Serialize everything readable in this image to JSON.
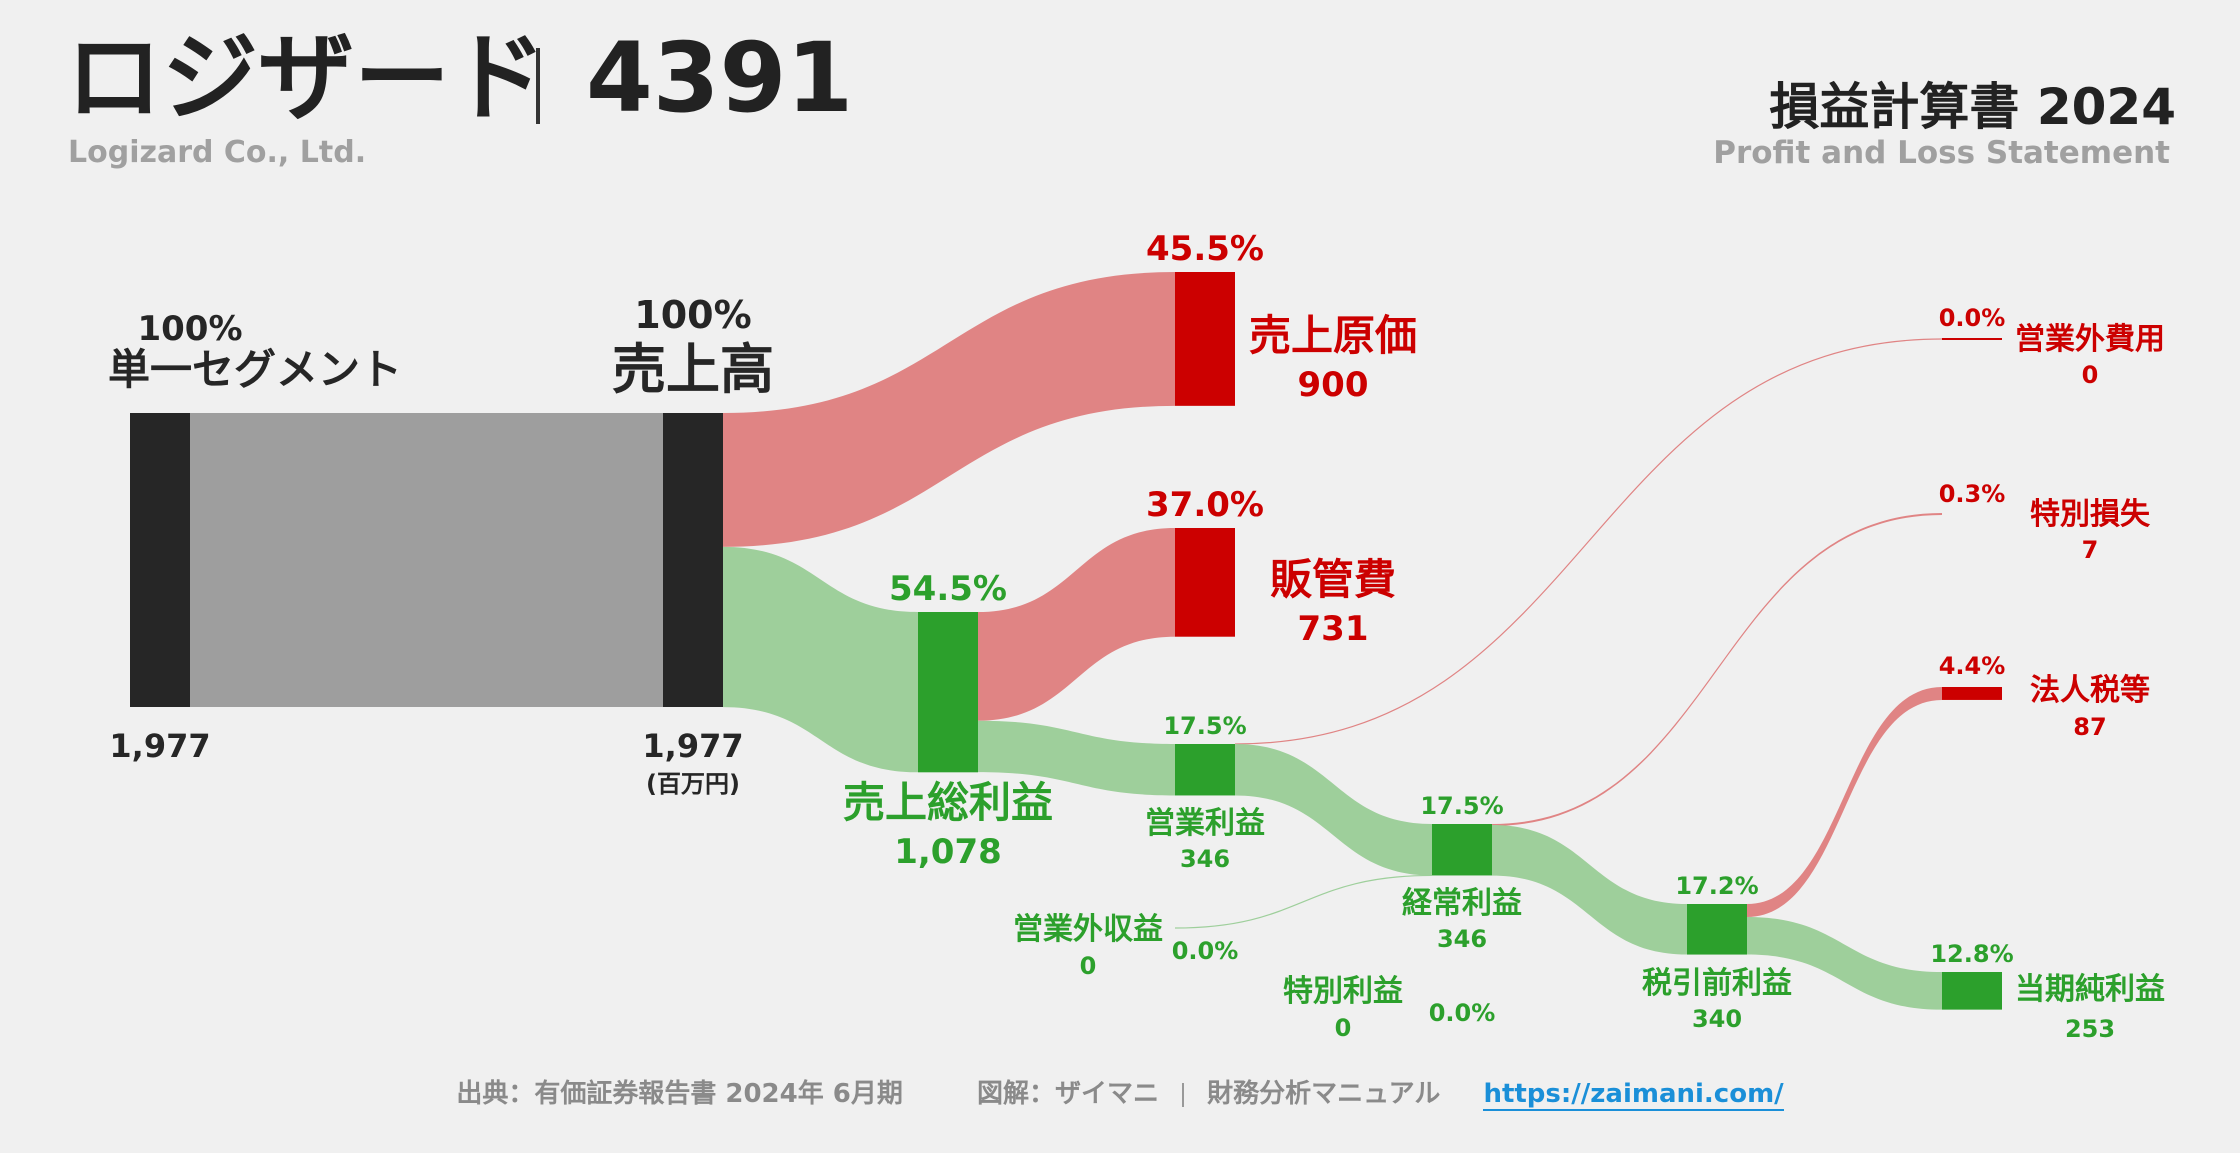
{
  "header": {
    "company": "ロジザード",
    "code": "4391",
    "company_en": "Logizard Co., Ltd.",
    "statement": "損益計算書 2024",
    "statement_en": "Profit and Loss Statement"
  },
  "footer": {
    "source": "出典：有価証券報告書 2024年 6月期",
    "credit": "図解：ザイマニ",
    "credit2": "財務分析マニュアル",
    "url": "https://zaimani.com/"
  },
  "colors": {
    "dark": "#262626",
    "gray_flow": "#9e9e9e",
    "red": "#cc0000",
    "red_flow": "#e08484",
    "green": "#2ca02c",
    "green_flow": "#9ecf9b"
  },
  "chart_data": {
    "type": "sankey",
    "unit": "(百万円)",
    "nodes": [
      {
        "id": "segment",
        "label": "単一セグメント",
        "value": "1,977",
        "pct": "100%",
        "kind": "base"
      },
      {
        "id": "revenue",
        "label": "売上高",
        "value": "1,977",
        "pct": "100%",
        "kind": "base"
      },
      {
        "id": "cogs",
        "label": "売上原価",
        "value": "900",
        "pct": "45.5%",
        "kind": "cost"
      },
      {
        "id": "gross",
        "label": "売上総利益",
        "value": "1,078",
        "pct": "54.5%",
        "kind": "profit"
      },
      {
        "id": "sga",
        "label": "販管費",
        "value": "731",
        "pct": "37.0%",
        "kind": "cost"
      },
      {
        "id": "op",
        "label": "営業利益",
        "value": "346",
        "pct": "17.5%",
        "kind": "profit"
      },
      {
        "id": "nonop_inc",
        "label": "営業外収益",
        "value": "0",
        "pct": "0.0%",
        "kind": "profit"
      },
      {
        "id": "nonop_exp",
        "label": "営業外費用",
        "value": "0",
        "pct": "0.0%",
        "kind": "cost"
      },
      {
        "id": "ordinary",
        "label": "経常利益",
        "value": "346",
        "pct": "17.5%",
        "kind": "profit"
      },
      {
        "id": "ext_gain",
        "label": "特別利益",
        "value": "0",
        "pct": "0.0%",
        "kind": "profit"
      },
      {
        "id": "ext_loss",
        "label": "特別損失",
        "value": "7",
        "pct": "0.3%",
        "kind": "cost"
      },
      {
        "id": "pretax",
        "label": "税引前利益",
        "value": "340",
        "pct": "17.2%",
        "kind": "profit"
      },
      {
        "id": "tax",
        "label": "法人税等",
        "value": "87",
        "pct": "4.4%",
        "kind": "cost"
      },
      {
        "id": "net",
        "label": "当期純利益",
        "value": "253",
        "pct": "12.8%",
        "kind": "profit"
      }
    ],
    "flows": [
      {
        "from": "segment",
        "to": "revenue",
        "value": 1977
      },
      {
        "from": "revenue",
        "to": "cogs",
        "value": 900
      },
      {
        "from": "revenue",
        "to": "gross",
        "value": 1078
      },
      {
        "from": "gross",
        "to": "sga",
        "value": 731
      },
      {
        "from": "gross",
        "to": "op",
        "value": 346
      },
      {
        "from": "op",
        "to": "nonop_exp",
        "value": 0
      },
      {
        "from": "nonop_inc",
        "to": "ordinary",
        "value": 0
      },
      {
        "from": "op",
        "to": "ordinary",
        "value": 346
      },
      {
        "from": "ordinary",
        "to": "ext_loss",
        "value": 7
      },
      {
        "from": "ordinary",
        "to": "pretax",
        "value": 340
      },
      {
        "from": "pretax",
        "to": "tax",
        "value": 87
      },
      {
        "from": "pretax",
        "to": "net",
        "value": 253
      }
    ]
  }
}
